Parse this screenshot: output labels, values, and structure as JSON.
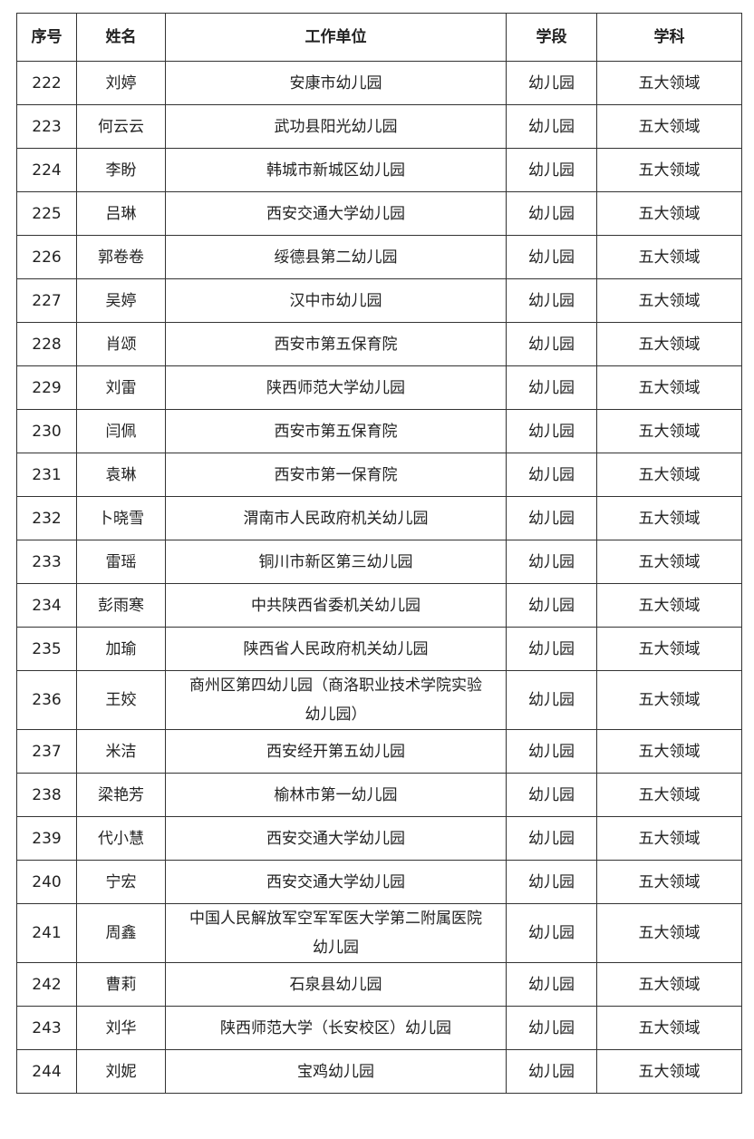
{
  "table": {
    "header": [
      "序号",
      "姓名",
      "工作单位",
      "学段",
      "学科"
    ],
    "rows": [
      [
        "222",
        "刘婷",
        "安康市幼儿园",
        "幼儿园",
        "五大领域"
      ],
      [
        "223",
        "何云云",
        "武功县阳光幼儿园",
        "幼儿园",
        "五大领域"
      ],
      [
        "224",
        "李盼",
        "韩城市新城区幼儿园",
        "幼儿园",
        "五大领域"
      ],
      [
        "225",
        "吕琳",
        "西安交通大学幼儿园",
        "幼儿园",
        "五大领域"
      ],
      [
        "226",
        "郭卷卷",
        "绥德县第二幼儿园",
        "幼儿园",
        "五大领域"
      ],
      [
        "227",
        "吴婷",
        "汉中市幼儿园",
        "幼儿园",
        "五大领域"
      ],
      [
        "228",
        "肖颂",
        "西安市第五保育院",
        "幼儿园",
        "五大领域"
      ],
      [
        "229",
        "刘雷",
        "陕西师范大学幼儿园",
        "幼儿园",
        "五大领域"
      ],
      [
        "230",
        "闫佩",
        "西安市第五保育院",
        "幼儿园",
        "五大领域"
      ],
      [
        "231",
        "袁琳",
        "西安市第一保育院",
        "幼儿园",
        "五大领域"
      ],
      [
        "232",
        "卜晓雪",
        "渭南市人民政府机关幼儿园",
        "幼儿园",
        "五大领域"
      ],
      [
        "233",
        "雷瑶",
        "铜川市新区第三幼儿园",
        "幼儿园",
        "五大领域"
      ],
      [
        "234",
        "彭雨寒",
        "中共陕西省委机关幼儿园",
        "幼儿园",
        "五大领域"
      ],
      [
        "235",
        "加瑜",
        "陕西省人民政府机关幼儿园",
        "幼儿园",
        "五大领域"
      ],
      [
        "236",
        "王姣",
        "商州区第四幼儿园（商洛职业技术学院实验幼儿园）",
        "幼儿园",
        "五大领域"
      ],
      [
        "237",
        "米洁",
        "西安经开第五幼儿园",
        "幼儿园",
        "五大领域"
      ],
      [
        "238",
        "梁艳芳",
        "榆林市第一幼儿园",
        "幼儿园",
        "五大领域"
      ],
      [
        "239",
        "代小慧",
        "西安交通大学幼儿园",
        "幼儿园",
        "五大领域"
      ],
      [
        "240",
        "宁宏",
        "西安交通大学幼儿园",
        "幼儿园",
        "五大领域"
      ],
      [
        "241",
        "周鑫",
        "中国人民解放军空军军医大学第二附属医院幼儿园",
        "幼儿园",
        "五大领域"
      ],
      [
        "242",
        "曹莉",
        "石泉县幼儿园",
        "幼儿园",
        "五大领域"
      ],
      [
        "243",
        "刘华",
        "陕西师范大学（长安校区）幼儿园",
        "幼儿园",
        "五大领域"
      ],
      [
        "244",
        "刘妮",
        "宝鸡幼儿园",
        "幼儿园",
        "五大领域"
      ]
    ]
  }
}
